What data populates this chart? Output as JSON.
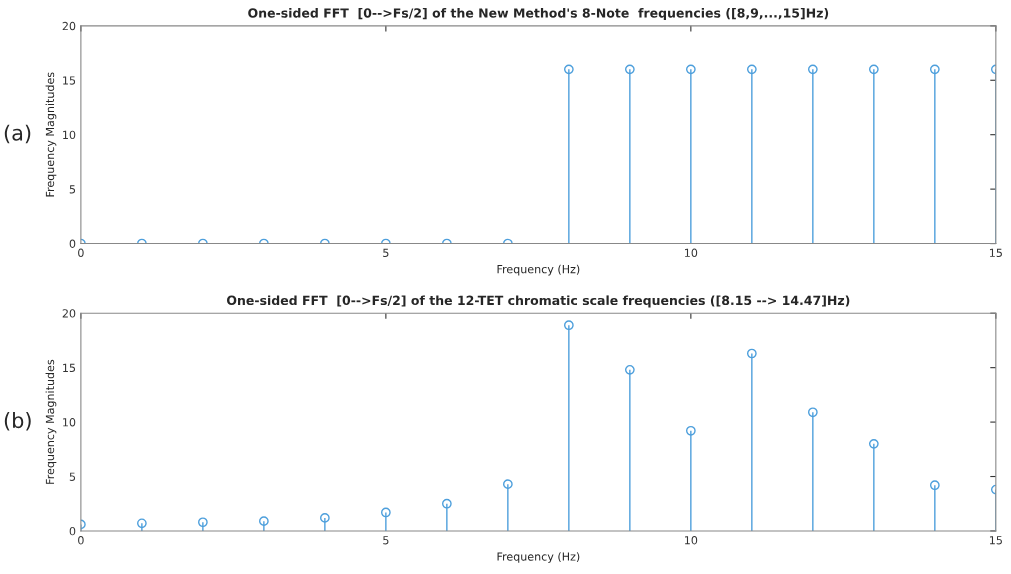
{
  "chart_data": [
    {
      "type": "lollipop",
      "title": "One-sided FFT  [0-->Fs/2] of the New Method's 8-Note  frequencies ([8,9,...,15]Hz)",
      "xlabel": "Frequency (Hz)",
      "ylabel": "Frequency Magnitudes",
      "annotations": [
        "(a)"
      ],
      "x": [
        0,
        1,
        2,
        3,
        4,
        5,
        6,
        7,
        8,
        9,
        10,
        11,
        12,
        13,
        14,
        15
      ],
      "series": [
        {
          "color": "#4d9fdc",
          "values": [
            0,
            0,
            0,
            0,
            0,
            0,
            0,
            0,
            16,
            16,
            16,
            16,
            16,
            16,
            16,
            16
          ]
        }
      ],
      "xlim": [
        0,
        15
      ],
      "xticks": [
        0,
        5,
        10,
        15
      ],
      "ylim": [
        0,
        20
      ],
      "yticks": [
        0,
        5,
        10,
        15,
        20
      ],
      "marker": "circle",
      "grid": false,
      "legend": false
    },
    {
      "type": "lollipop",
      "title": "One-sided FFT  [0-->Fs/2] of the 12-TET chromatic scale frequencies ([8.15 --> 14.47]Hz)",
      "xlabel": "Frequency (Hz)",
      "ylabel": "Frequency Magnitudes",
      "annotations": [
        "(b)"
      ],
      "x": [
        0,
        1,
        2,
        3,
        4,
        5,
        6,
        7,
        8,
        9,
        10,
        11,
        12,
        13,
        14,
        15
      ],
      "series": [
        {
          "color": "#4d9fdc",
          "values": [
            0.6,
            0.7,
            0.8,
            0.9,
            1.2,
            1.7,
            2.5,
            4.3,
            18.9,
            14.8,
            9.2,
            16.3,
            10.9,
            8.0,
            4.2,
            3.8
          ]
        }
      ],
      "xlim": [
        0,
        15
      ],
      "xticks": [
        0,
        5,
        10,
        15
      ],
      "ylim": [
        0,
        20
      ],
      "yticks": [
        0,
        5,
        10,
        15,
        20
      ],
      "marker": "circle",
      "grid": false,
      "legend": false
    }
  ]
}
